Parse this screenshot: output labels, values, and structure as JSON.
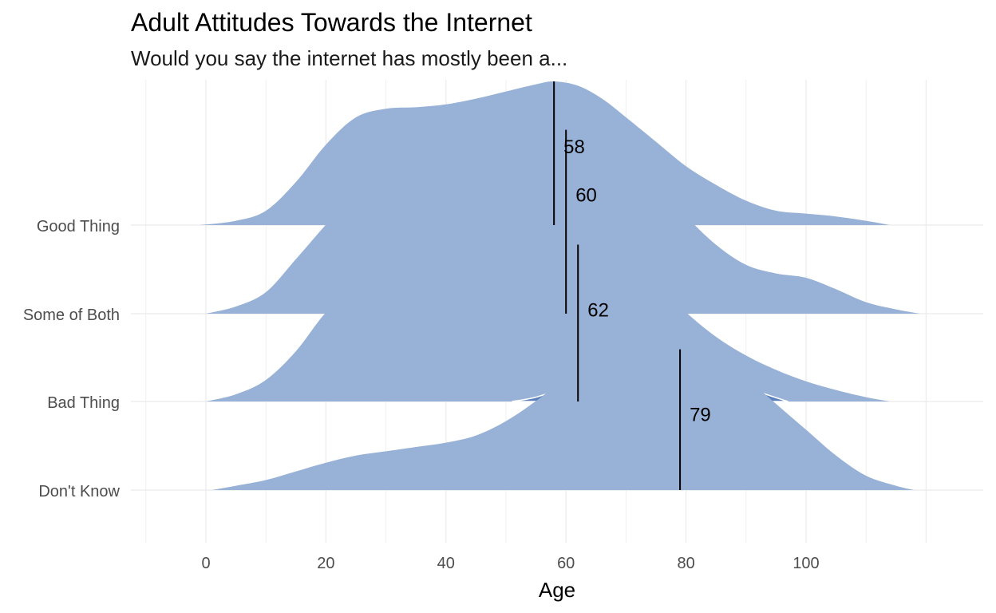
{
  "title": "Adult Attitudes Towards the Internet",
  "subtitle": "Would you say the internet has mostly been a...",
  "chart_data": {
    "type": "area",
    "subtype": "ridgeline density",
    "xlabel": "Age",
    "ylabel": "",
    "xlim": [
      -10,
      120
    ],
    "x_ticks": [
      0,
      20,
      40,
      60,
      80,
      100
    ],
    "grid": true,
    "legend": "none",
    "colors": {
      "outer_fill": "#98b1d7",
      "inner_fill": "#5b80bc",
      "inner_stroke": "#ffffff",
      "median_line": "#000000",
      "grid": "#ebebeb"
    },
    "categories": [
      "Good Thing",
      "Some of Both",
      "Bad Thing",
      "Don't Know"
    ],
    "series": [
      {
        "category": "Good Thing",
        "outer_density": [
          [
            -1,
            0
          ],
          [
            5,
            0.03
          ],
          [
            10,
            0.1
          ],
          [
            15,
            0.3
          ],
          [
            20,
            0.56
          ],
          [
            25,
            0.75
          ],
          [
            30,
            0.81
          ],
          [
            35,
            0.82
          ],
          [
            40,
            0.84
          ],
          [
            45,
            0.88
          ],
          [
            50,
            0.93
          ],
          [
            55,
            0.98
          ],
          [
            58,
            1.0
          ],
          [
            62,
            0.97
          ],
          [
            66,
            0.88
          ],
          [
            70,
            0.75
          ],
          [
            75,
            0.58
          ],
          [
            80,
            0.41
          ],
          [
            85,
            0.28
          ],
          [
            90,
            0.17
          ],
          [
            95,
            0.1
          ],
          [
            100,
            0.08
          ],
          [
            105,
            0.06
          ],
          [
            110,
            0.03
          ],
          [
            114,
            0
          ]
        ],
        "inner_density": [
          [
            24,
            0
          ],
          [
            26,
            0.07
          ],
          [
            30,
            0.12
          ],
          [
            35,
            0.14
          ],
          [
            40,
            0.15
          ],
          [
            45,
            0.18
          ],
          [
            50,
            0.25
          ],
          [
            55,
            0.32
          ],
          [
            58,
            0.37
          ],
          [
            62,
            0.36
          ],
          [
            66,
            0.3
          ],
          [
            70,
            0.22
          ],
          [
            75,
            0.08
          ],
          [
            78,
            0
          ]
        ],
        "median": 58,
        "median_label": "58"
      },
      {
        "category": "Some of Both",
        "outer_density": [
          [
            0,
            0
          ],
          [
            5,
            0.05
          ],
          [
            10,
            0.15
          ],
          [
            15,
            0.38
          ],
          [
            20,
            0.62
          ],
          [
            25,
            0.85
          ],
          [
            30,
            0.93
          ],
          [
            35,
            0.95
          ],
          [
            40,
            0.98
          ],
          [
            45,
            1.02
          ],
          [
            50,
            1.12
          ],
          [
            55,
            1.22
          ],
          [
            60,
            1.28
          ],
          [
            65,
            1.25
          ],
          [
            70,
            1.13
          ],
          [
            75,
            0.92
          ],
          [
            80,
            0.68
          ],
          [
            85,
            0.48
          ],
          [
            90,
            0.34
          ],
          [
            95,
            0.28
          ],
          [
            100,
            0.25
          ],
          [
            105,
            0.17
          ],
          [
            110,
            0.08
          ],
          [
            115,
            0.03
          ],
          [
            119,
            0
          ]
        ],
        "inner_density": [
          [
            38,
            0
          ],
          [
            42,
            0.05
          ],
          [
            45,
            0.08
          ],
          [
            50,
            0.15
          ],
          [
            55,
            0.28
          ],
          [
            60,
            0.38
          ],
          [
            62,
            0.42
          ],
          [
            66,
            0.4
          ],
          [
            70,
            0.3
          ],
          [
            75,
            0.14
          ],
          [
            78,
            0.03
          ],
          [
            79,
            0
          ]
        ],
        "median": 60,
        "median_label": "60"
      },
      {
        "category": "Bad Thing",
        "outer_density": [
          [
            0,
            0
          ],
          [
            5,
            0.05
          ],
          [
            10,
            0.15
          ],
          [
            15,
            0.35
          ],
          [
            20,
            0.62
          ],
          [
            25,
            0.8
          ],
          [
            30,
            0.86
          ],
          [
            35,
            0.88
          ],
          [
            40,
            0.92
          ],
          [
            45,
            0.98
          ],
          [
            50,
            1.03
          ],
          [
            55,
            1.08
          ],
          [
            60,
            1.1
          ],
          [
            65,
            1.08
          ],
          [
            70,
            0.98
          ],
          [
            75,
            0.82
          ],
          [
            80,
            0.62
          ],
          [
            85,
            0.45
          ],
          [
            90,
            0.32
          ],
          [
            95,
            0.22
          ],
          [
            100,
            0.14
          ],
          [
            105,
            0.08
          ],
          [
            110,
            0.03
          ],
          [
            114,
            0
          ]
        ],
        "inner_density": [
          [
            51,
            0
          ],
          [
            55,
            0.03
          ],
          [
            60,
            0.1
          ],
          [
            62,
            0.13
          ],
          [
            65,
            0.17
          ],
          [
            70,
            0.2
          ],
          [
            75,
            0.21
          ],
          [
            79,
            0.22
          ],
          [
            82,
            0.21
          ],
          [
            86,
            0.17
          ],
          [
            90,
            0.1
          ],
          [
            94,
            0.04
          ],
          [
            97,
            0
          ]
        ],
        "median": 62,
        "median_label": "62"
      },
      {
        "category": "Don't Know",
        "outer_density": [
          [
            1,
            0
          ],
          [
            5,
            0.03
          ],
          [
            10,
            0.07
          ],
          [
            15,
            0.13
          ],
          [
            20,
            0.19
          ],
          [
            25,
            0.24
          ],
          [
            30,
            0.27
          ],
          [
            35,
            0.3
          ],
          [
            40,
            0.33
          ],
          [
            45,
            0.38
          ],
          [
            50,
            0.48
          ],
          [
            55,
            0.62
          ],
          [
            60,
            0.78
          ],
          [
            65,
            0.9
          ],
          [
            70,
            0.96
          ],
          [
            75,
            0.98
          ],
          [
            79,
            0.98
          ],
          [
            85,
            0.92
          ],
          [
            90,
            0.78
          ],
          [
            95,
            0.6
          ],
          [
            100,
            0.42
          ],
          [
            105,
            0.24
          ],
          [
            110,
            0.1
          ],
          [
            115,
            0.03
          ],
          [
            118,
            0
          ]
        ],
        "median": 79,
        "median_label": "79"
      }
    ]
  }
}
